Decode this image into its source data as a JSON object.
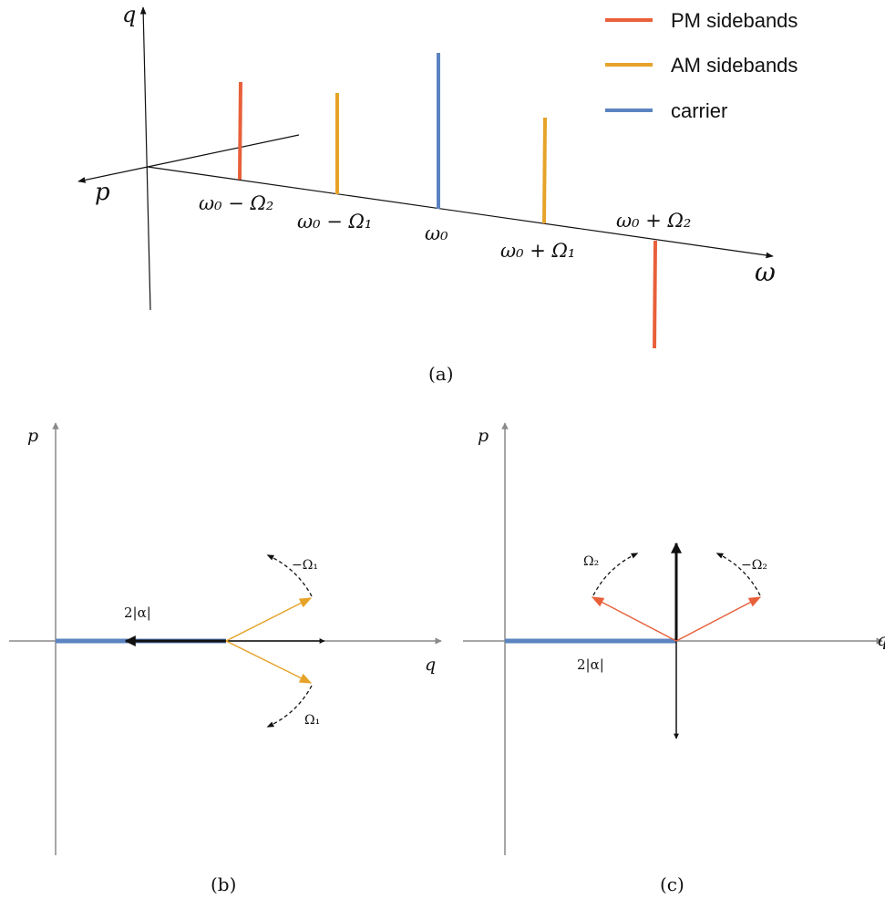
{
  "colors": {
    "pm": "#e8603a",
    "am": "#e6a32a",
    "carrier": "#5b84c0",
    "axis_gray": "#8a8a8a",
    "axis_black": "#111111"
  },
  "legend": {
    "pm": "PM sidebands",
    "am": "AM sidebands",
    "carrier": "carrier"
  },
  "panel_a": {
    "caption": "(a)",
    "axis_q": "q",
    "axis_p": "p",
    "axis_omega": "ω",
    "labels": {
      "w0_minus_O2": "ω₀ − Ω₂",
      "w0_minus_O1": "ω₀ − Ω₁",
      "w0": "ω₀",
      "w0_plus_O1": "ω₀ + Ω₁",
      "w0_plus_O2": "ω₀ + Ω₂"
    }
  },
  "panel_b": {
    "caption": "(b)",
    "axis_p": "p",
    "axis_q": "q",
    "amp_label": "2|α|",
    "rot_top": "−Ω₁",
    "rot_bottom": "Ω₁"
  },
  "panel_c": {
    "caption": "(c)",
    "axis_p": "p",
    "axis_q": "q",
    "amp_label": "2|α|",
    "rot_left": "Ω₂",
    "rot_right": "−Ω₂"
  }
}
